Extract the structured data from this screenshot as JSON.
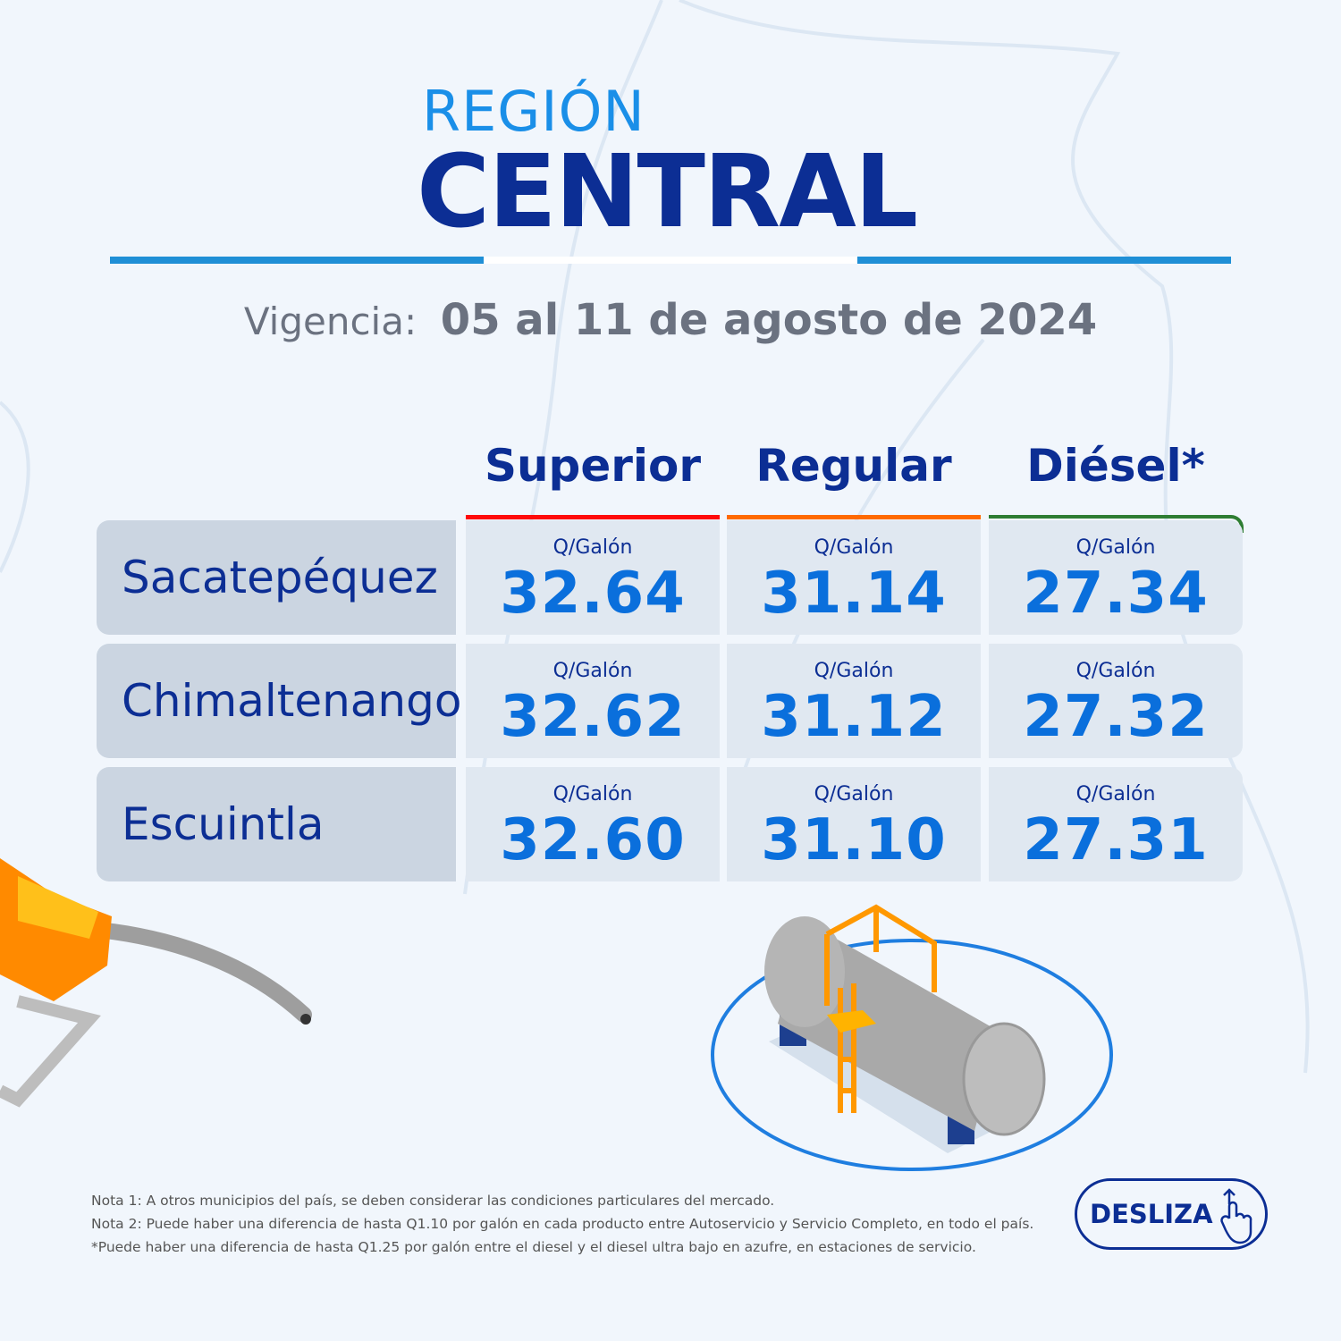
{
  "header": {
    "title_top": "REGIÓN",
    "title_main": "CENTRAL"
  },
  "validity": {
    "label": "Vigencia:",
    "dates": "05 al 11 de agosto de 2024"
  },
  "colors": {
    "superior": "#ff0a0a",
    "regular": "#ff6a00",
    "diesel": "#2e7d32",
    "accent": "#0c2e94",
    "price": "#0a6fdc"
  },
  "table": {
    "columns": [
      "Superior",
      "Regular",
      "Diésel*"
    ],
    "unit": "Q/Galón",
    "rows": [
      {
        "name": "Sacatepéquez",
        "prices": [
          "32.64",
          "31.14",
          "27.34"
        ]
      },
      {
        "name": "Chimaltenango",
        "prices": [
          "32.62",
          "31.12",
          "27.32"
        ]
      },
      {
        "name": "Escuintla",
        "prices": [
          "32.60",
          "31.10",
          "27.31"
        ]
      }
    ]
  },
  "notes": [
    "Nota 1: A otros municipios del país, se deben considerar las condiciones particulares del mercado.",
    "Nota 2: Puede haber una diferencia de hasta Q1.10 por galón en cada producto entre Autoservicio y Servicio Completo, en todo el país.",
    "*Puede haber una diferencia de hasta Q1.25 por galón entre el diesel y el diesel ultra bajo en azufre, en estaciones de servicio."
  ],
  "swipe": {
    "label": "DESLIZA",
    "icon": "swipe-hand-icon"
  }
}
